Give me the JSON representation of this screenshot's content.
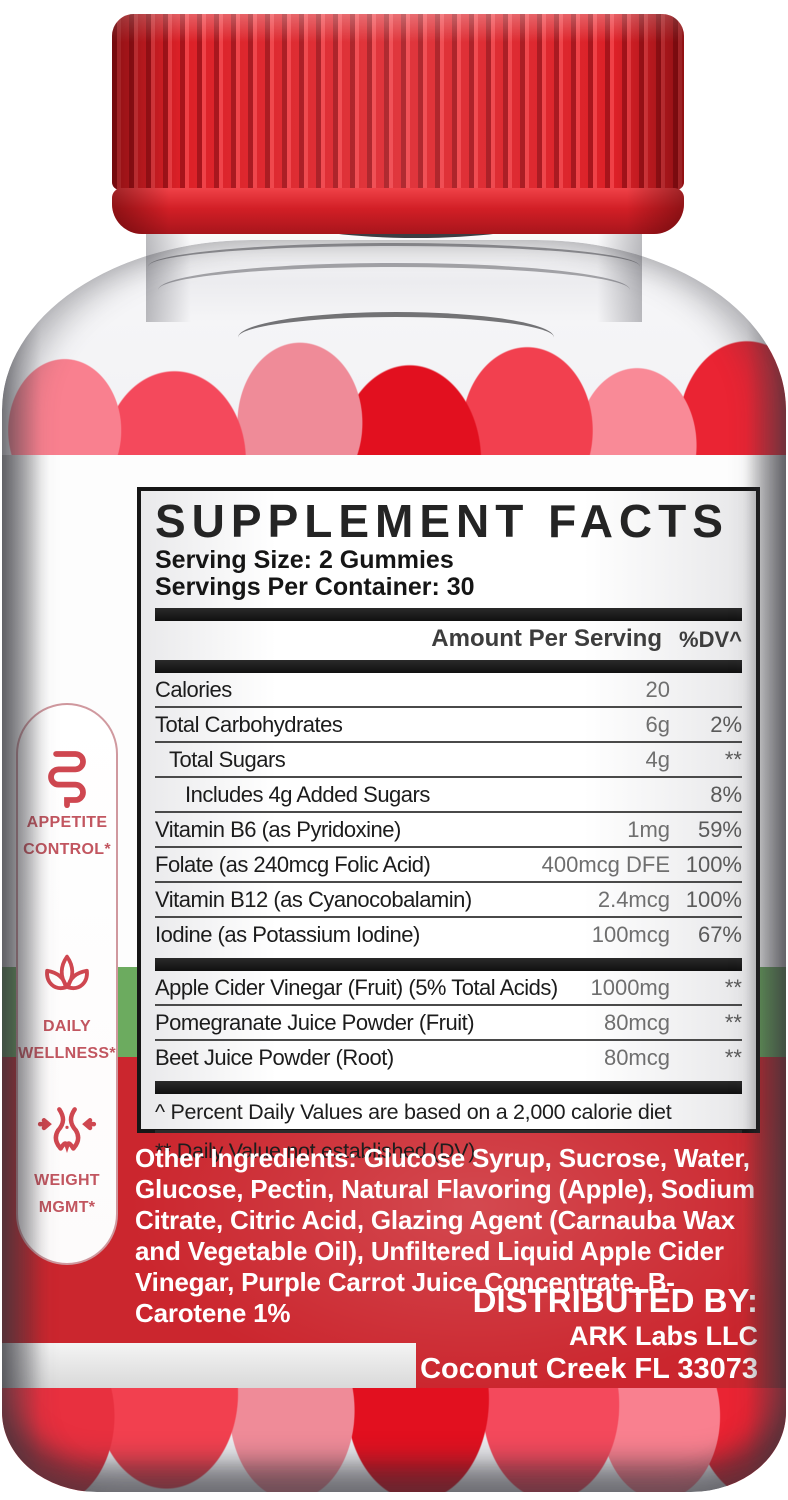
{
  "label": {
    "facts_panel": {
      "title": "SUPPLEMENT FACTS",
      "serving_size": "Serving Size: 2 Gummies",
      "servings_per_container": "Servings Per Container: 30",
      "columns": {
        "amount": "Amount Per Serving",
        "dv": "%DV^"
      },
      "rows_main": [
        {
          "name": "Calories",
          "amount": "20",
          "dv": "",
          "indent": 0
        },
        {
          "name": "Total Carbohydrates",
          "amount": "6g",
          "dv": "2%",
          "indent": 0
        },
        {
          "name": "Total Sugars",
          "amount": "4g",
          "dv": "**",
          "indent": 1
        },
        {
          "name": "Includes 4g Added Sugars",
          "amount": "",
          "dv": "8%",
          "indent": 2
        },
        {
          "name": "Vitamin B6 (as Pyridoxine)",
          "amount": "1mg",
          "dv": "59%",
          "indent": 0
        },
        {
          "name": "Folate (as 240mcg Folic Acid)",
          "amount": "400mcg DFE",
          "dv": "100%",
          "indent": 0
        },
        {
          "name": "Vitamin B12 (as Cyanocobalamin)",
          "amount": "2.4mcg",
          "dv": "100%",
          "indent": 0
        },
        {
          "name": "Iodine (as Potassium Iodine)",
          "amount": "100mcg",
          "dv": "67%",
          "indent": 0
        }
      ],
      "rows_blend": [
        {
          "name": "Apple Cider Vinegar (Fruit) (5% Total Acids)",
          "amount": "1000mg",
          "dv": "**",
          "indent": 0
        },
        {
          "name": "Pomegranate Juice Powder (Fruit)",
          "amount": "80mcg",
          "dv": "**",
          "indent": 0
        },
        {
          "name": "Beet Juice Powder (Root)",
          "amount": "80mcg",
          "dv": "**",
          "indent": 0
        }
      ],
      "footnotes": [
        "^ Percent Daily Values are based on a 2,000 calorie diet",
        "** Daily Value not established (DV)"
      ]
    },
    "benefits": [
      {
        "icon": "intestines-icon",
        "line1": "APPETITE",
        "line2": "CONTROL*"
      },
      {
        "icon": "lotus-icon",
        "line1": "DAILY",
        "line2": "WELLNESS*"
      },
      {
        "icon": "waist-icon",
        "line1": "WEIGHT",
        "line2": "MGMT*"
      }
    ],
    "other_ingredients": "Other Ingredients: Glucose Syrup, Sucrose, Water, Glucose, Pectin, Natural Flavoring (Apple), Sodium Citrate, Citric Acid, Glazing Agent (Carnauba Wax and Vegetable Oil), Unfiltered Liquid Apple Cider Vinegar, Purple Carrot Juice Concentrate, B-Carotene 1%",
    "distributor": {
      "heading": "DISTRIBUTED BY:",
      "name": "ARK Labs LLC",
      "address": "Coconut Creek FL 33073"
    }
  },
  "colors": {
    "cap_red": "#dd2128",
    "gummy_red": "#ea2433",
    "gummy_pink": "#f9808f",
    "band_green": "#6cab5f",
    "label_red": "#cb262e",
    "accent_rose": "#c25660",
    "panel_border": "#161616"
  }
}
